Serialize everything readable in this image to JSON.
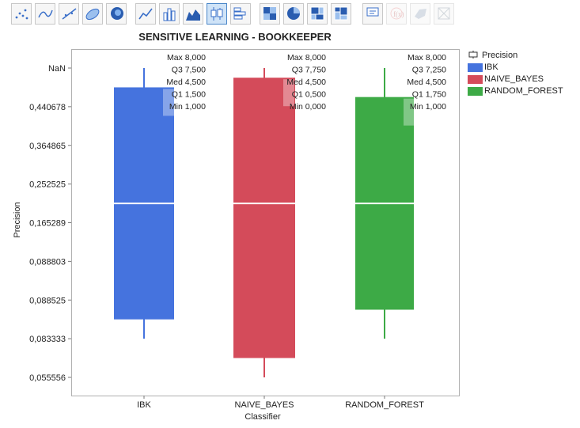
{
  "colors": {
    "IBK": "#4573de",
    "NAIVE_BAYES": "#d44b5a",
    "RANDOM_FOREST": "#3daa46",
    "stats_band": "#ffffff"
  },
  "toolbar": {
    "icons": [
      "points-icon",
      "smoother-icon",
      "line-of-fit-icon",
      "ellipse-icon",
      "contour-icon",
      "line-chart-icon",
      "bar-chart-icon",
      "area-chart-icon",
      "box-plot-icon",
      "histogram-icon",
      "heatmap-icon",
      "pie-chart-icon",
      "treemap-icon",
      "mosaic-icon",
      "caption-box-icon",
      "formula-icon",
      "map-shapes-icon",
      "custom-icon"
    ]
  },
  "chart_data": {
    "type": "box",
    "title": "SENSITIVE LEARNING - BOOKKEEPER",
    "xlabel": "Classifier",
    "ylabel": "Precision",
    "categories": [
      "IBK",
      "NAIVE_BAYES",
      "RANDOM_FOREST"
    ],
    "y_ticks": [
      "NaN",
      "0,440678",
      "0,364865",
      "0,252525",
      "0,165289",
      "0,088803",
      "0,088525",
      "0,083333",
      "0,055556"
    ],
    "ylim": [
      0,
      8
    ],
    "boxes": [
      {
        "name": "IBK",
        "max": 8.0,
        "q3": 7.5,
        "median": 4.5,
        "q1": 1.5,
        "min": 1.0,
        "labels": {
          "max": "8,000",
          "q3": "7,500",
          "med": "4,500",
          "q1": "1,500",
          "min": "1,000"
        }
      },
      {
        "name": "NAIVE_BAYES",
        "max": 8.0,
        "q3": 7.75,
        "median": 4.5,
        "q1": 0.5,
        "min": 0.0,
        "labels": {
          "max": "8,000",
          "q3": "7,750",
          "med": "4,500",
          "q1": "0,500",
          "min": "0,000"
        }
      },
      {
        "name": "RANDOM_FOREST",
        "max": 8.0,
        "q3": 7.25,
        "median": 4.5,
        "q1": 1.75,
        "min": 1.0,
        "labels": {
          "max": "8,000",
          "q3": "7,250",
          "med": "4,500",
          "q1": "1,750",
          "min": "1,000"
        }
      }
    ],
    "stat_names": {
      "max": "Max",
      "q3": "Q3",
      "med": "Med",
      "q1": "Q1",
      "min": "Min"
    },
    "legend": {
      "title": "Precision",
      "position": "right",
      "entries": [
        "IBK",
        "NAIVE_BAYES",
        "RANDOM_FOREST"
      ]
    },
    "grid": false
  }
}
